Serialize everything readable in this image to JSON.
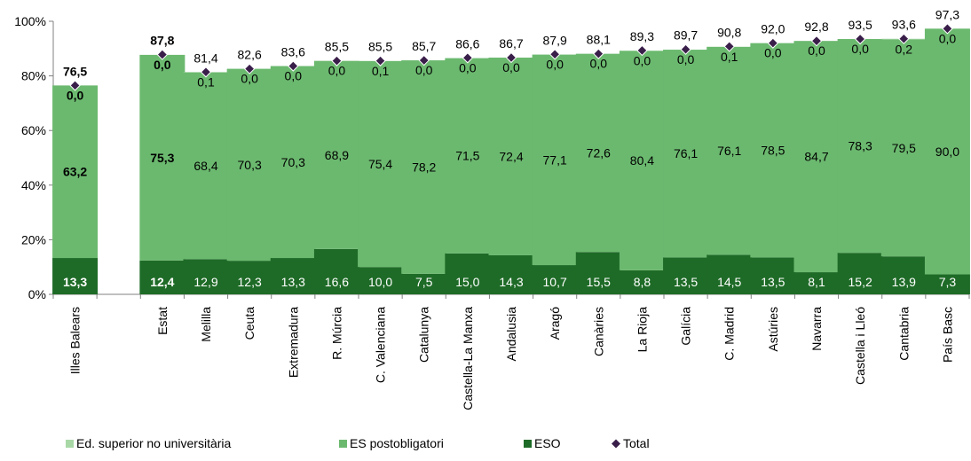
{
  "chart_data": {
    "type": "bar",
    "stacked": true,
    "categories": [
      "Illes Balears",
      "Estat",
      "Melilla",
      "Ceuta",
      "Extremadura",
      "R. Múrcia",
      "C. Valenciana",
      "Catalunya",
      "Castella-La Manxa",
      "Andalusia",
      "Aragó",
      "Canàries",
      "La Rioja",
      "Galícia",
      "C. Madrid",
      "Astúries",
      "Navarra",
      "Castella i Lleó",
      "Cantabria",
      "País Basc"
    ],
    "bold_categories": [
      "Illes Balears",
      "Estat"
    ],
    "y_tick_labels": [
      "0%",
      "20%",
      "40%",
      "60%",
      "80%",
      "100%"
    ],
    "ylim": [
      0,
      100
    ],
    "series": [
      {
        "name": "ESO",
        "color": "#1e6b27",
        "values": [
          13.3,
          12.4,
          12.9,
          12.3,
          13.3,
          16.6,
          10.0,
          7.5,
          15.0,
          14.3,
          10.7,
          15.5,
          8.8,
          13.5,
          14.5,
          13.5,
          8.1,
          15.2,
          13.9,
          7.3
        ],
        "labels": [
          "13,3",
          "12,4",
          "12,9",
          "12,3",
          "13,3",
          "16,6",
          "10,0",
          "7,5",
          "15,0",
          "14,3",
          "10,7",
          "15,5",
          "8,8",
          "13,5",
          "14,5",
          "13,5",
          "8,1",
          "15,2",
          "13,9",
          "7,3"
        ]
      },
      {
        "name": "ES postobligatori",
        "color": "#6bb96f",
        "values": [
          63.2,
          75.3,
          68.4,
          70.3,
          70.3,
          68.9,
          75.4,
          78.2,
          71.5,
          72.4,
          77.1,
          72.6,
          80.4,
          76.1,
          76.1,
          78.5,
          84.7,
          78.3,
          79.5,
          90.0
        ],
        "labels": [
          "63,2",
          "75,3",
          "68,4",
          "70,3",
          "70,3",
          "68,9",
          "75,4",
          "78,2",
          "71,5",
          "72,4",
          "77,1",
          "72,6",
          "80,4",
          "76,1",
          "76,1",
          "78,5",
          "84,7",
          "78,3",
          "79,5",
          "90,0"
        ]
      },
      {
        "name": "Ed. superior no universitària",
        "color": "#a9d8a7",
        "values": [
          0.0,
          0.0,
          0.1,
          0.0,
          0.0,
          0.0,
          0.1,
          0.0,
          0.0,
          0.0,
          0.0,
          0.0,
          0.0,
          0.0,
          0.1,
          0.0,
          0.0,
          0.0,
          0.2,
          0.0
        ],
        "labels": [
          "0,0",
          "0,0",
          "0,1",
          "0,0",
          "0,0",
          "0,0",
          "0,1",
          "0,0",
          "0,0",
          "0,0",
          "0,0",
          "0,0",
          "0,0",
          "0,0",
          "0,1",
          "0,0",
          "0,0",
          "0,0",
          "0,2",
          "0,0"
        ]
      }
    ],
    "total": {
      "name": "Total",
      "marker_color": "#3a1e4a",
      "values": [
        76.5,
        87.8,
        81.4,
        82.6,
        83.6,
        85.5,
        85.5,
        85.7,
        86.6,
        86.7,
        87.9,
        88.1,
        89.3,
        89.7,
        90.8,
        92.0,
        92.8,
        93.5,
        93.6,
        97.3
      ],
      "labels": [
        "76,5",
        "87,8",
        "81,4",
        "82,6",
        "83,6",
        "85,5",
        "85,5",
        "85,7",
        "86,6",
        "86,7",
        "87,9",
        "88,1",
        "89,3",
        "89,7",
        "90,8",
        "92,0",
        "92,8",
        "93,5",
        "93,6",
        "97,3"
      ]
    },
    "legend": {
      "position": "bottom",
      "items": [
        {
          "label": "Ed. superior no universitària",
          "color": "#a9d8a7",
          "kind": "box"
        },
        {
          "label": "ES postobligatori",
          "color": "#6bb96f",
          "kind": "box"
        },
        {
          "label": "ESO",
          "color": "#1e6b27",
          "kind": "box"
        },
        {
          "label": "Total",
          "color": "#3a1e4a",
          "kind": "diamond"
        }
      ]
    },
    "grid": false
  }
}
